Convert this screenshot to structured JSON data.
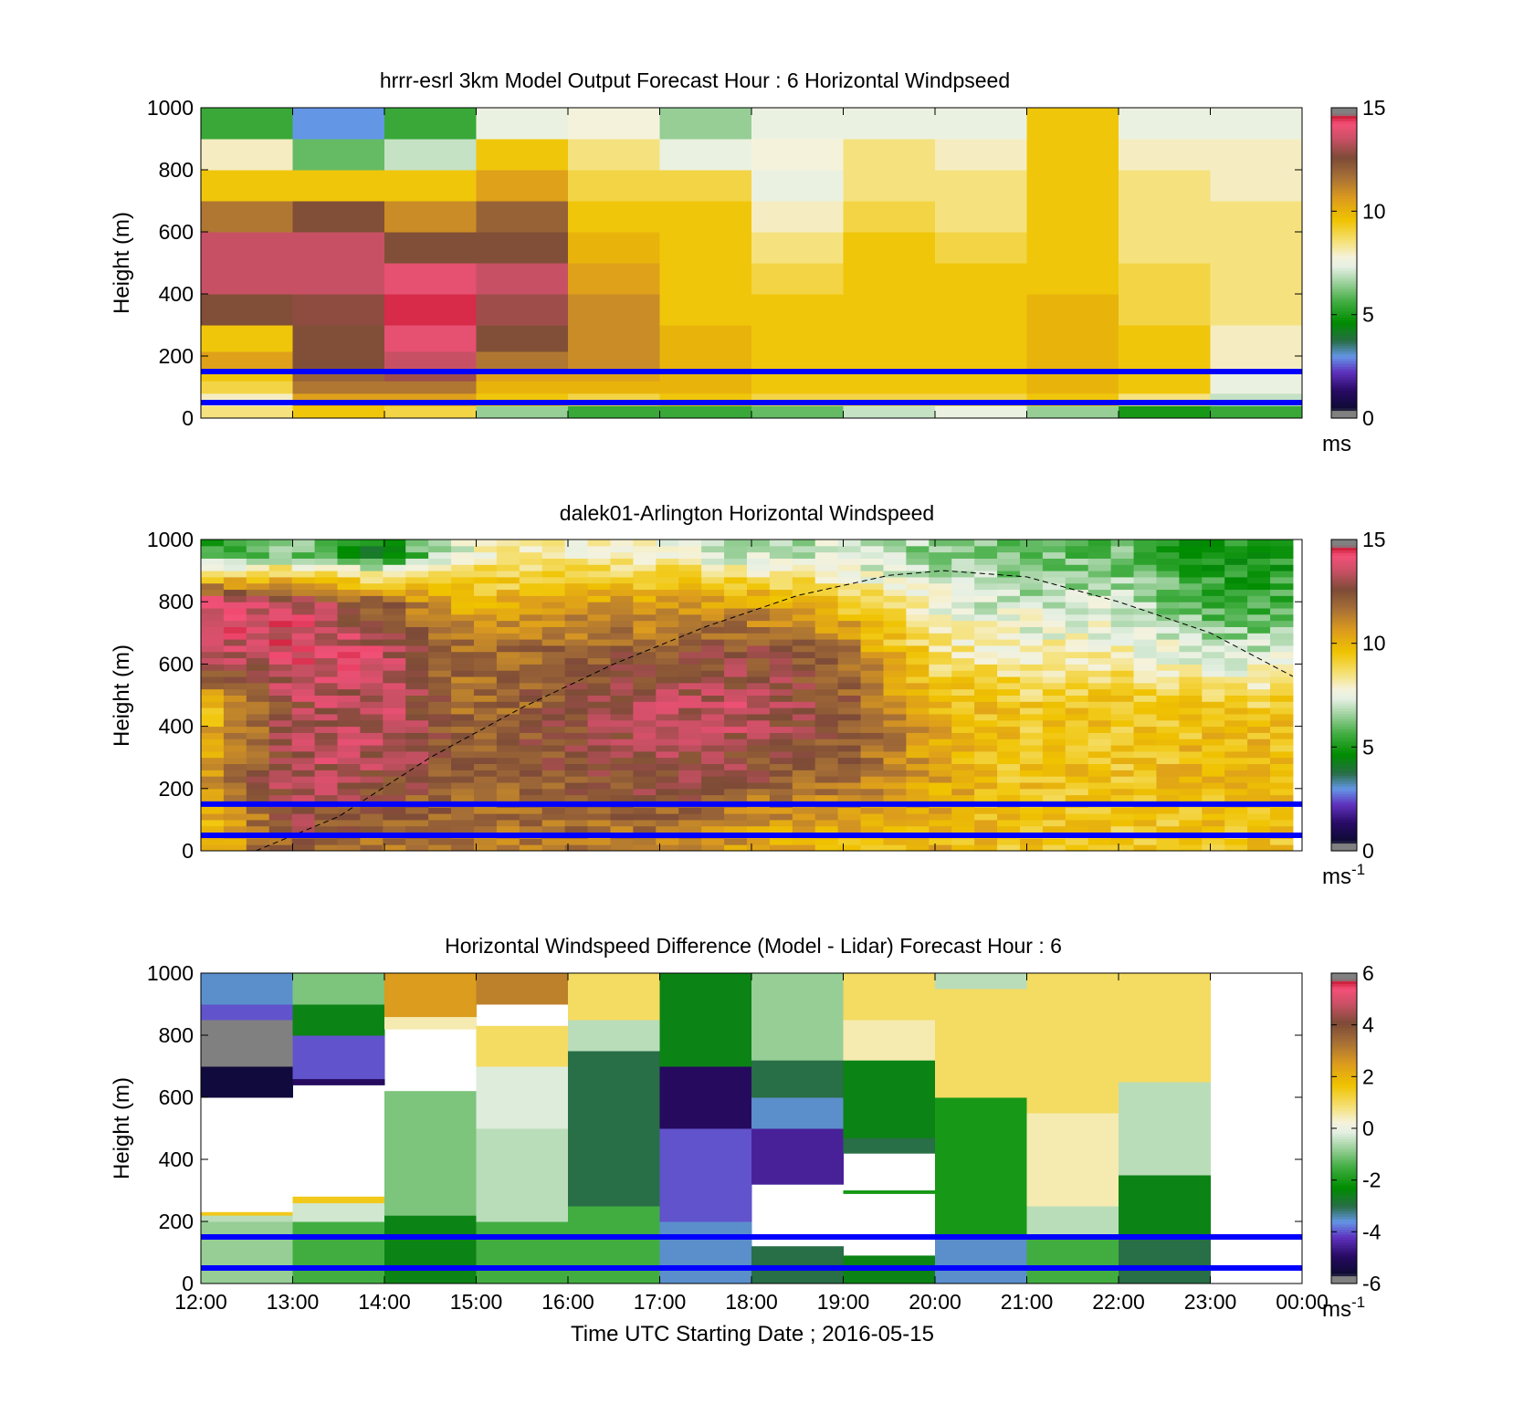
{
  "figure": {
    "xlabel": "Time UTC  Starting Date ; 2016-05-15",
    "xticks": [
      "12:00",
      "13:00",
      "14:00",
      "15:00",
      "16:00",
      "17:00",
      "18:00",
      "19:00",
      "20:00",
      "21:00",
      "22:00",
      "23:00",
      "00:00"
    ]
  },
  "chart_data": [
    {
      "type": "heatmap",
      "title": "hrrr-esrl 3km Model Output   Forecast Hour : 6 Horizontal Windpseed",
      "ylabel": "Height (m)",
      "ylim": [
        0,
        1000
      ],
      "yticks": [
        "0",
        "200",
        "400",
        "600",
        "800",
        "1000"
      ],
      "x_hours": [
        12,
        13,
        14,
        15,
        16,
        17,
        18,
        19,
        20,
        21,
        22,
        23
      ],
      "colorbar": {
        "min": 0,
        "max": 15,
        "ticks": [
          "0",
          "5",
          "10",
          "15"
        ],
        "unit": "ms",
        "unit_sup": ""
      },
      "reference_lines_m": [
        50,
        150
      ],
      "levels_m": [
        20,
        60,
        100,
        140,
        180,
        250,
        350,
        450,
        550,
        650,
        750,
        850,
        950
      ],
      "values": [
        [
          8.5,
          8.0,
          9.0,
          9.5,
          10.5,
          9.5,
          12.5,
          13.5,
          13.5,
          11.5,
          9.5,
          8.0,
          5.5
        ],
        [
          9.5,
          10.5,
          11.5,
          12.0,
          12.5,
          12.5,
          12.8,
          13.5,
          13.5,
          12.5,
          9.5,
          6.0,
          3.0
        ],
        [
          9.0,
          10.5,
          11.5,
          13.0,
          13.5,
          14.0,
          14.5,
          14.0,
          12.5,
          11.0,
          9.5,
          7.0,
          5.5
        ],
        [
          6.5,
          9.5,
          10.0,
          10.5,
          11.5,
          12.5,
          13.0,
          13.5,
          12.5,
          12.0,
          10.5,
          9.5,
          7.5
        ],
        [
          5.5,
          9.0,
          10.0,
          10.5,
          11.0,
          11.0,
          11.0,
          10.5,
          10.0,
          9.5,
          9.0,
          8.5,
          7.8
        ],
        [
          5.5,
          9.5,
          10.0,
          10.0,
          10.0,
          10.0,
          9.5,
          9.5,
          9.5,
          9.5,
          9.0,
          7.5,
          6.5
        ],
        [
          6.0,
          9.0,
          9.5,
          9.5,
          9.5,
          9.5,
          9.5,
          9.0,
          8.5,
          8.0,
          7.5,
          7.8,
          7.5
        ],
        [
          7.0,
          9.0,
          9.5,
          9.5,
          9.5,
          9.5,
          9.5,
          9.5,
          9.5,
          9.0,
          8.5,
          8.5,
          7.5
        ],
        [
          7.5,
          9.0,
          9.5,
          9.5,
          9.5,
          9.5,
          9.5,
          9.5,
          9.0,
          8.5,
          8.5,
          8.0,
          7.5
        ],
        [
          6.5,
          9.5,
          10.0,
          10.0,
          10.0,
          10.0,
          10.0,
          9.5,
          9.5,
          9.5,
          9.5,
          9.5,
          9.5
        ],
        [
          5.0,
          8.5,
          9.5,
          9.5,
          9.5,
          9.5,
          9.0,
          9.0,
          8.5,
          8.5,
          8.5,
          8.0,
          7.5
        ],
        [
          5.5,
          7.0,
          7.5,
          7.5,
          8.0,
          8.0,
          8.5,
          8.5,
          8.5,
          8.5,
          8.0,
          8.0,
          7.5
        ]
      ]
    },
    {
      "type": "heatmap",
      "title": "dalek01-Arlington  Horizontal Windspeed",
      "ylabel": "Height (m)",
      "ylim": [
        0,
        1000
      ],
      "yticks": [
        "0",
        "200",
        "400",
        "600",
        "800",
        "1000"
      ],
      "x_range_hours": [
        12,
        23.9
      ],
      "colorbar": {
        "min": 0,
        "max": 15,
        "ticks": [
          "0",
          "5",
          "10",
          "15"
        ],
        "unit": "ms",
        "unit_sup": "-1"
      },
      "reference_lines_m": [
        50,
        150
      ],
      "anchors": {
        "hours": [
          12,
          13,
          14,
          15,
          16,
          17,
          18,
          19,
          20,
          21,
          22,
          23,
          24
        ],
        "heights_m": [
          50,
          150,
          300,
          450,
          600,
          750,
          900,
          1000
        ],
        "values": [
          [
            9.5,
            10.5,
            9.5,
            13.5,
            14.0,
            5.5
          ],
          [
            12.5,
            13.5,
            13.0,
            14.0,
            13.5,
            6.5
          ],
          [
            11.5,
            13.0,
            13.5,
            13.5,
            12.0,
            4.5
          ],
          [
            11.5,
            12.0,
            11.5,
            11.5,
            10.0,
            8.0
          ],
          [
            11.5,
            12.5,
            12.5,
            12.0,
            10.5,
            8.0
          ],
          [
            11.5,
            13.0,
            13.5,
            12.0,
            10.5,
            8.0
          ],
          [
            10.5,
            12.5,
            13.5,
            12.5,
            10.5,
            7.0
          ],
          [
            10.0,
            12.0,
            12.5,
            11.5,
            9.5,
            7.0
          ],
          [
            10.0,
            10.5,
            10.0,
            8.5,
            7.5,
            6.5
          ],
          [
            9.5,
            9.5,
            9.5,
            8.0,
            7.0,
            6.0
          ],
          [
            9.5,
            9.5,
            9.5,
            8.0,
            7.0,
            6.0
          ],
          [
            9.5,
            10.0,
            9.5,
            7.0,
            5.5,
            5.0
          ]
        ],
        "value_heights_m": [
          50,
          250,
          450,
          650,
          800,
          950
        ]
      },
      "dashed_curve_m": {
        "hours": [
          12.6,
          13.5,
          14.5,
          15.5,
          16.5,
          17.5,
          18.5,
          19.5,
          20.1,
          21.0,
          22.0,
          23.0,
          23.9
        ],
        "heights": [
          0,
          110,
          300,
          460,
          600,
          720,
          820,
          885,
          900,
          880,
          800,
          700,
          560
        ]
      }
    },
    {
      "type": "heatmap",
      "title": "Horizontal Windspeed Difference (Model - Lidar) Forecast Hour : 6",
      "ylabel": "Height (m)",
      "ylim": [
        0,
        1000
      ],
      "yticks": [
        "0",
        "200",
        "400",
        "600",
        "800",
        "1000"
      ],
      "x_hours": [
        12,
        13,
        14,
        15,
        16,
        17,
        18,
        19,
        20,
        21,
        22
      ],
      "colorbar": {
        "min": -6,
        "max": 6,
        "ticks": [
          "-6",
          "-4",
          "-2",
          "0",
          "2",
          "4",
          "6"
        ],
        "unit": "ms",
        "unit_sup": "-1"
      },
      "reference_lines_m": [
        50,
        150
      ],
      "segments": [
        [
          [
            0,
            200,
            -0.8
          ],
          [
            200,
            220,
            -0.5
          ],
          [
            220,
            230,
            1.5
          ],
          [
            230,
            600,
            null
          ],
          [
            600,
            700,
            -5.5
          ],
          [
            700,
            850,
            -6.0
          ],
          [
            850,
            900,
            -4.0
          ],
          [
            900,
            1000,
            -3.5
          ]
        ],
        [
          [
            0,
            200,
            -1.5
          ],
          [
            200,
            260,
            -0.3
          ],
          [
            260,
            280,
            1.5
          ],
          [
            280,
            640,
            null
          ],
          [
            640,
            660,
            -5.0
          ],
          [
            660,
            800,
            -4.0
          ],
          [
            800,
            900,
            -2.5
          ],
          [
            900,
            1000,
            -1.0
          ]
        ],
        [
          [
            0,
            220,
            -2.5
          ],
          [
            220,
            620,
            -1.0
          ],
          [
            620,
            820,
            null
          ],
          [
            820,
            860,
            0.5
          ],
          [
            860,
            1000,
            2.5
          ]
        ],
        [
          [
            0,
            200,
            -1.5
          ],
          [
            200,
            500,
            -0.5
          ],
          [
            500,
            700,
            -0.2
          ],
          [
            700,
            830,
            1.0
          ],
          [
            830,
            900,
            null
          ],
          [
            900,
            1000,
            3.0
          ]
        ],
        [
          [
            0,
            250,
            -1.5
          ],
          [
            250,
            750,
            -3.0
          ],
          [
            750,
            850,
            -0.5
          ],
          [
            850,
            1000,
            1.0
          ]
        ],
        [
          [
            0,
            200,
            -3.5
          ],
          [
            200,
            500,
            -4.0
          ],
          [
            500,
            700,
            -5.0
          ],
          [
            700,
            1000,
            -2.5
          ]
        ],
        [
          [
            0,
            120,
            -3.0
          ],
          [
            120,
            320,
            null
          ],
          [
            320,
            500,
            -4.5
          ],
          [
            500,
            600,
            -3.5
          ],
          [
            600,
            720,
            -3.0
          ],
          [
            720,
            1000,
            -0.8
          ]
        ],
        [
          [
            0,
            90,
            -2.5
          ],
          [
            90,
            120,
            null
          ],
          [
            120,
            290,
            null
          ],
          [
            290,
            300,
            -2.0
          ],
          [
            300,
            420,
            null
          ],
          [
            420,
            470,
            -3.0
          ],
          [
            470,
            720,
            -2.5
          ],
          [
            720,
            850,
            0.5
          ],
          [
            850,
            1000,
            1.0
          ]
        ],
        [
          [
            0,
            150,
            -3.5
          ],
          [
            150,
            600,
            -2.0
          ],
          [
            600,
            950,
            1.0
          ],
          [
            950,
            1000,
            -0.5
          ]
        ],
        [
          [
            0,
            150,
            -1.5
          ],
          [
            150,
            250,
            -0.5
          ],
          [
            250,
            550,
            0.5
          ],
          [
            550,
            1000,
            1.0
          ]
        ],
        [
          [
            0,
            150,
            -3.0
          ],
          [
            150,
            350,
            -2.5
          ],
          [
            350,
            650,
            -0.5
          ],
          [
            650,
            1000,
            1.0
          ]
        ]
      ]
    }
  ]
}
